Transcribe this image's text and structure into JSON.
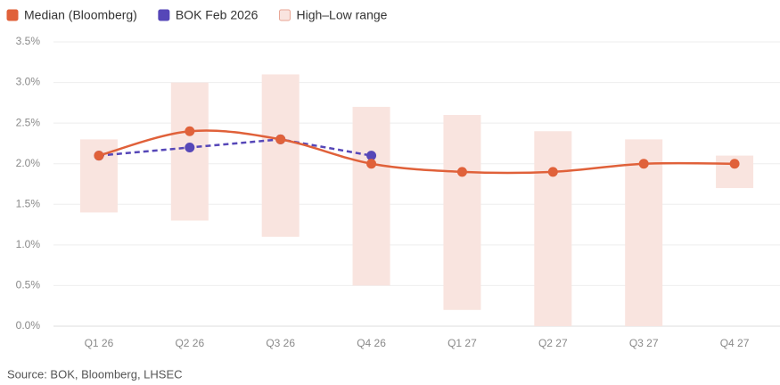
{
  "chart_data": {
    "type": "line",
    "categories": [
      "Q1 26",
      "Q2 26",
      "Q3 26",
      "Q4 26",
      "Q1 27",
      "Q2 27",
      "Q3 27",
      "Q4 27"
    ],
    "series": [
      {
        "name": "Median (Bloomberg)",
        "color": "#e0613a",
        "values": [
          2.1,
          2.4,
          2.3,
          2.0,
          1.9,
          1.9,
          2.0,
          2.0
        ]
      },
      {
        "name": "BOK Feb 2026",
        "color": "#5647b8",
        "dashed": true,
        "values": [
          2.1,
          2.2,
          2.3,
          2.1,
          null,
          null,
          null,
          null
        ]
      }
    ],
    "range": {
      "name": "High–Low range",
      "color": "#f9e4df",
      "high": [
        2.3,
        3.0,
        3.1,
        2.7,
        2.6,
        2.4,
        2.3,
        2.1
      ],
      "low": [
        1.4,
        1.3,
        1.1,
        0.5,
        0.2,
        0.0,
        0.0,
        1.7
      ]
    },
    "ylim": [
      0,
      3.5
    ],
    "yticks": [
      {
        "value": 0,
        "label": "0.0%"
      },
      {
        "value": 0.5,
        "label": "0.5%"
      },
      {
        "value": 1,
        "label": "1.0%"
      },
      {
        "value": 1.5,
        "label": "1.5%"
      },
      {
        "value": 2,
        "label": "2.0%"
      },
      {
        "value": 2.5,
        "label": "2.5%"
      },
      {
        "value": 3,
        "label": "3.0%"
      },
      {
        "value": 3.5,
        "label": "3.5%"
      }
    ],
    "grid": true,
    "source": "Source: BOK, Bloomberg, LHSEC"
  }
}
